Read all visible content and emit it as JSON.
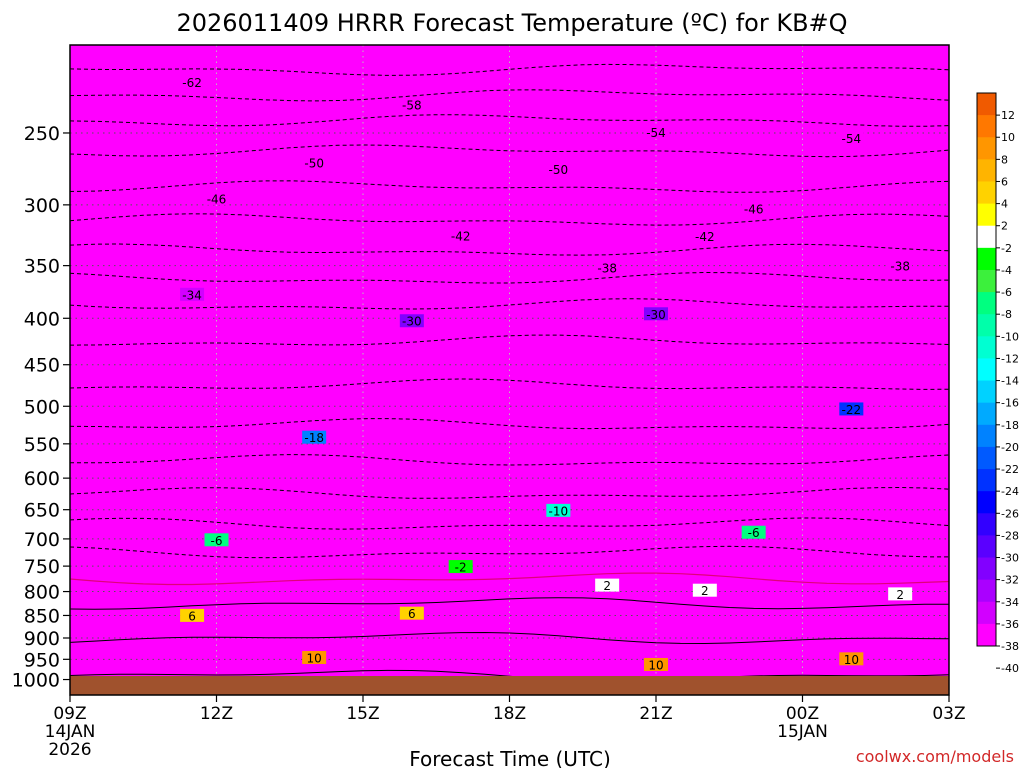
{
  "chart_data": {
    "type": "heatmap",
    "title": "2026011409 HRRR Forecast Temperature (ºC) for KB#Q",
    "xlabel": "Forecast Time (UTC)",
    "ylabel": "",
    "watermark": "coolwx.com/models",
    "x_ticks": [
      {
        "label": "09Z",
        "sub1": "14JAN",
        "sub2": "2026",
        "hour": 0
      },
      {
        "label": "12Z",
        "sub1": "",
        "sub2": "",
        "hour": 3
      },
      {
        "label": "15Z",
        "sub1": "",
        "sub2": "",
        "hour": 6
      },
      {
        "label": "18Z",
        "sub1": "",
        "sub2": "",
        "hour": 9
      },
      {
        "label": "21Z",
        "sub1": "",
        "sub2": "",
        "hour": 12
      },
      {
        "label": "00Z",
        "sub1": "15JAN",
        "sub2": "",
        "hour": 15
      },
      {
        "label": "03Z",
        "sub1": "",
        "sub2": "",
        "hour": 18
      }
    ],
    "xlim": [
      0,
      18
    ],
    "y_ticks": [
      "250",
      "300",
      "350",
      "400",
      "450",
      "500",
      "550",
      "600",
      "650",
      "700",
      "750",
      "800",
      "850",
      "900",
      "950",
      "1000"
    ],
    "y_scale": "log",
    "ylim": [
      1040,
      200
    ],
    "colorbar": {
      "labels": [
        "12",
        "10",
        "8",
        "6",
        "4",
        "2",
        "-2",
        "-4",
        "-6",
        "-8",
        "-10",
        "-12",
        "-14",
        "-16",
        "-18",
        "-20",
        "-22",
        "-24",
        "-26",
        "-28",
        "-30",
        "-32",
        "-34",
        "-36",
        "-38",
        "-40"
      ],
      "colors": [
        "#f05a00",
        "#ff7800",
        "#ff9600",
        "#ffb400",
        "#ffd200",
        "#ffff00",
        "#ffffff",
        "#00ff00",
        "#3cf03c",
        "#00ff80",
        "#00ffaa",
        "#00ffd2",
        "#00ffff",
        "#00d2ff",
        "#00aaff",
        "#0082ff",
        "#005aff",
        "#0032ff",
        "#0000ff",
        "#3200ff",
        "#5a00ff",
        "#8200ff",
        "#aa00ff",
        "#d200ff",
        "#ff00ff"
      ]
    },
    "contour_labels": [
      "-62",
      "-58",
      "-54",
      "-54",
      "-50",
      "-50",
      "-46",
      "-46",
      "-42",
      "-42",
      "-38",
      "-38",
      "-34",
      "-30",
      "-30",
      "-22",
      "-18",
      "-10",
      "-6",
      "-6",
      "-2",
      "2",
      "2",
      "2",
      "6",
      "6",
      "10",
      "10",
      "10"
    ],
    "temperature_profile": {
      "pressure_hPa": [
        1000,
        950,
        900,
        850,
        800,
        775,
        750,
        700,
        650,
        600,
        550,
        500,
        450,
        400,
        350,
        300,
        250,
        220
      ],
      "temp_C": [
        11,
        10,
        8,
        6,
        2,
        0,
        -2,
        -6,
        -10,
        -14,
        -18,
        -22,
        -26,
        -30,
        -38,
        -46,
        -54,
        -62
      ]
    }
  }
}
